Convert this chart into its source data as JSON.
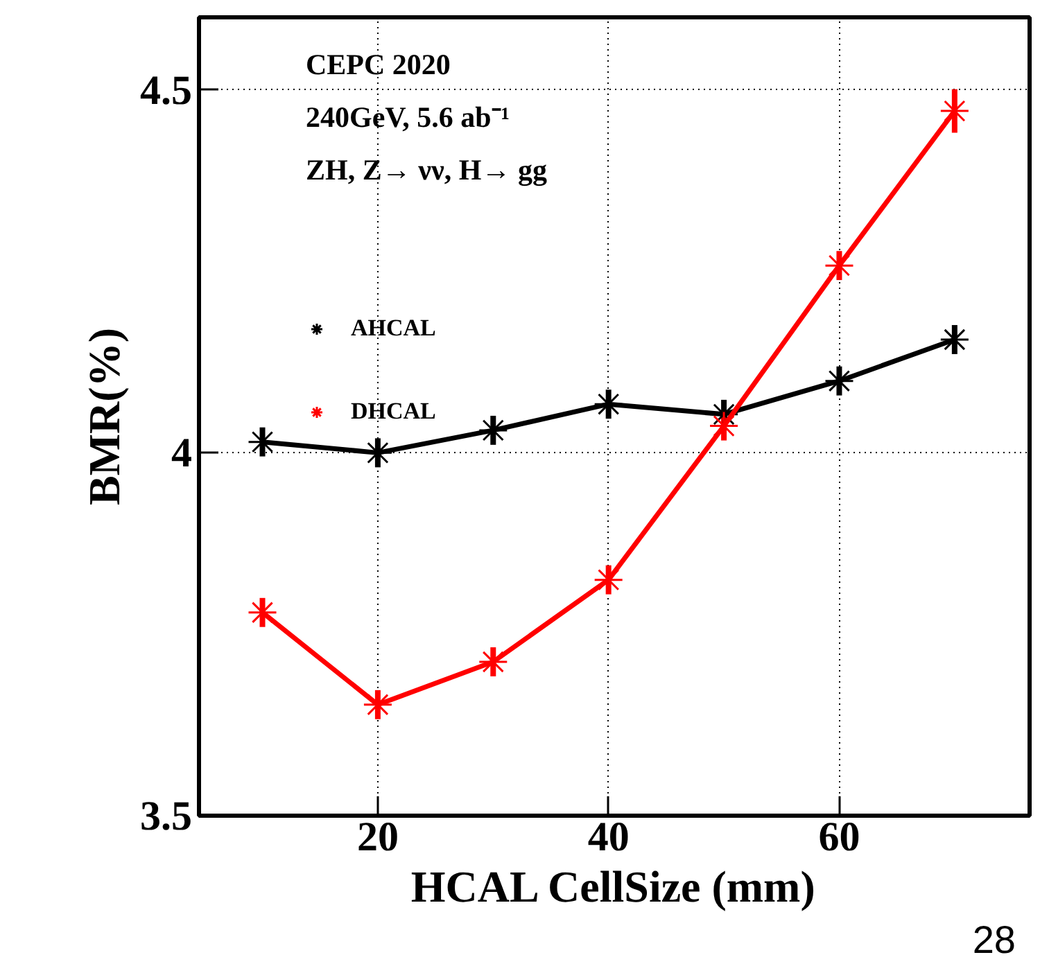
{
  "chart_data": {
    "type": "line",
    "xlabel": "HCAL CellSize (mm)",
    "ylabel": "BMR(%)",
    "annotations": [
      "CEPC 2020",
      "240GeV, 5.6 ab⁻¹",
      "ZH, Z→  νν, H→ gg",
      "28"
    ],
    "x": [
      10,
      20,
      30,
      40,
      50,
      60,
      70
    ],
    "series": [
      {
        "name": "AHCAL",
        "color": "#000000",
        "values": [
          4.015,
          4.0,
          4.031,
          4.067,
          4.053,
          4.099,
          4.156
        ],
        "errors": [
          0.02,
          0.02,
          0.02,
          0.02,
          0.02,
          0.02,
          0.02
        ]
      },
      {
        "name": "DHCAL",
        "color": "#ff0000",
        "values": [
          3.78,
          3.653,
          3.712,
          3.825,
          4.037,
          4.258,
          4.471
        ],
        "errors": [
          0.02,
          0.02,
          0.02,
          0.02,
          0.02,
          0.02,
          0.03
        ]
      }
    ],
    "xlim": [
      4.5,
      76.5
    ],
    "xticks": [
      20,
      40,
      60
    ],
    "ylim": [
      3.5,
      4.6
    ],
    "yticks": [
      3.5,
      4,
      4.5
    ],
    "grid": true,
    "legend": "top left",
    "marker": "cross",
    "line_style": "solid"
  }
}
